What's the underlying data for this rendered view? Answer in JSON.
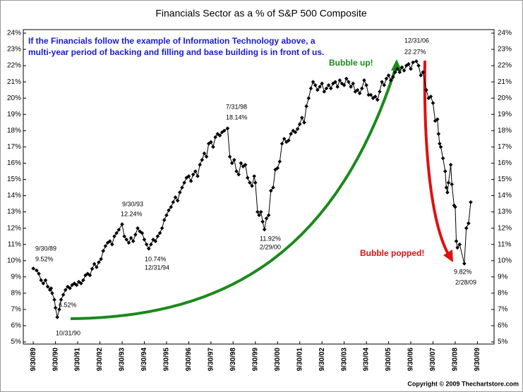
{
  "chart_data": {
    "type": "line",
    "title": "Financials Sector as a % of S&P 500 Composite",
    "note": "If the Financials follow the example of Information Technology above, a multi-year period of backing and filling and base building is in front of us.",
    "bubble_up": "Bubble up!",
    "bubble_popped": "Bubble popped!",
    "copyright": "Copyright © 2009 Thechartstore.com",
    "annotations": [
      "9/30/89",
      "9.52%",
      "6.52%",
      "10/31/90",
      "9/30/93",
      "12.24%",
      "10.74%",
      "12/31/94",
      "7/31/98",
      "18.14%",
      "11.92%",
      "2/29/00",
      "12/31/06",
      "22.27%",
      "9.82%",
      "2/28/09"
    ],
    "color": "#000000",
    "grid": false,
    "xlim": [
      1989.3,
      2010.5
    ],
    "ylim": [
      5,
      24
    ],
    "xticks": [
      {
        "value": 1989.75,
        "label": "9/30/89"
      },
      {
        "value": 1990.75,
        "label": "9/30/90"
      },
      {
        "value": 1991.75,
        "label": "9/30/91"
      },
      {
        "value": 1992.75,
        "label": "9/30/92"
      },
      {
        "value": 1993.75,
        "label": "9/30/93"
      },
      {
        "value": 1994.75,
        "label": "9/30/94"
      },
      {
        "value": 1995.75,
        "label": "9/30/95"
      },
      {
        "value": 1996.75,
        "label": "9/30/96"
      },
      {
        "value": 1997.75,
        "label": "9/30/97"
      },
      {
        "value": 1998.75,
        "label": "9/30/98"
      },
      {
        "value": 1999.75,
        "label": "9/30/99"
      },
      {
        "value": 2000.75,
        "label": "9/30/00"
      },
      {
        "value": 2001.75,
        "label": "9/30/01"
      },
      {
        "value": 2002.75,
        "label": "9/30/02"
      },
      {
        "value": 2003.75,
        "label": "9/30/03"
      },
      {
        "value": 2004.75,
        "label": "9/30/04"
      },
      {
        "value": 2005.75,
        "label": "9/30/05"
      },
      {
        "value": 2006.75,
        "label": "9/30/06"
      },
      {
        "value": 2007.75,
        "label": "9/30/07"
      },
      {
        "value": 2008.75,
        "label": "9/30/08"
      },
      {
        "value": 2009.75,
        "label": "9/30/09"
      }
    ],
    "yticks": [
      {
        "value": 5,
        "label": "5%"
      },
      {
        "value": 6,
        "label": "6%"
      },
      {
        "value": 7,
        "label": "7%"
      },
      {
        "value": 8,
        "label": "8%"
      },
      {
        "value": 9,
        "label": "9%"
      },
      {
        "value": 10,
        "label": "10%"
      },
      {
        "value": 11,
        "label": "11%"
      },
      {
        "value": 12,
        "label": "12%"
      },
      {
        "value": 13,
        "label": "13%"
      },
      {
        "value": 14,
        "label": "14%"
      },
      {
        "value": 15,
        "label": "15%"
      },
      {
        "value": 16,
        "label": "16%"
      },
      {
        "value": 17,
        "label": "17%"
      },
      {
        "value": 18,
        "label": "18%"
      },
      {
        "value": 19,
        "label": "19%"
      },
      {
        "value": 20,
        "label": "20%"
      },
      {
        "value": 21,
        "label": "21%"
      },
      {
        "value": 22,
        "label": "22%"
      },
      {
        "value": 23,
        "label": "23%"
      },
      {
        "value": 24,
        "label": "24%"
      }
    ],
    "x": [
      1989.75,
      1989.9,
      1990.0,
      1990.1,
      1990.2,
      1990.3,
      1990.4,
      1990.5,
      1990.55,
      1990.6,
      1990.7,
      1990.75,
      1990.83,
      1990.92,
      1991.0,
      1991.1,
      1991.2,
      1991.3,
      1991.4,
      1991.5,
      1991.6,
      1991.7,
      1991.8,
      1991.9,
      1992.0,
      1992.1,
      1992.2,
      1992.3,
      1992.4,
      1992.5,
      1992.6,
      1992.7,
      1992.8,
      1992.9,
      1993.0,
      1993.1,
      1993.2,
      1993.3,
      1993.4,
      1993.5,
      1993.6,
      1993.75,
      1993.85,
      1993.95,
      1994.05,
      1994.15,
      1994.25,
      1994.35,
      1994.45,
      1994.55,
      1994.65,
      1994.75,
      1994.85,
      1994.95,
      1995.05,
      1995.15,
      1995.25,
      1995.35,
      1995.45,
      1995.55,
      1995.65,
      1995.75,
      1995.85,
      1995.95,
      1996.05,
      1996.15,
      1996.25,
      1996.35,
      1996.45,
      1996.55,
      1996.65,
      1996.75,
      1996.85,
      1996.95,
      1997.05,
      1997.15,
      1997.25,
      1997.35,
      1997.45,
      1997.55,
      1997.65,
      1997.75,
      1997.85,
      1997.95,
      1998.05,
      1998.15,
      1998.25,
      1998.35,
      1998.5,
      1998.6,
      1998.7,
      1998.8,
      1998.9,
      1999.0,
      1999.1,
      1999.2,
      1999.3,
      1999.4,
      1999.5,
      1999.6,
      1999.7,
      1999.75,
      1999.85,
      1999.92,
      2000.0,
      2000.08,
      2000.16,
      2000.25,
      2000.35,
      2000.45,
      2000.55,
      2000.65,
      2000.75,
      2000.85,
      2000.95,
      2001.05,
      2001.15,
      2001.25,
      2001.35,
      2001.45,
      2001.55,
      2001.65,
      2001.75,
      2001.85,
      2001.95,
      2002.05,
      2002.15,
      2002.25,
      2002.35,
      2002.45,
      2002.55,
      2002.65,
      2002.75,
      2002.85,
      2002.95,
      2003.05,
      2003.15,
      2003.25,
      2003.35,
      2003.45,
      2003.55,
      2003.65,
      2003.75,
      2003.85,
      2003.95,
      2004.05,
      2004.15,
      2004.25,
      2004.35,
      2004.45,
      2004.55,
      2004.65,
      2004.75,
      2004.85,
      2004.95,
      2005.05,
      2005.15,
      2005.25,
      2005.35,
      2005.45,
      2005.55,
      2005.65,
      2005.75,
      2005.85,
      2005.95,
      2006.05,
      2006.15,
      2006.25,
      2006.35,
      2006.45,
      2006.55,
      2006.65,
      2006.75,
      2006.85,
      2007.0,
      2007.1,
      2007.2,
      2007.3,
      2007.45,
      2007.55,
      2007.65,
      2007.75,
      2007.85,
      2007.95,
      2008.0,
      2008.05,
      2008.1,
      2008.2,
      2008.3,
      2008.35,
      2008.4,
      2008.45,
      2008.55,
      2008.6,
      2008.7,
      2008.75,
      2008.8,
      2008.85,
      2008.95,
      2009.16,
      2009.25,
      2009.35,
      2009.45
    ],
    "values": [
      9.52,
      9.4,
      9.2,
      8.8,
      8.6,
      8.8,
      8.4,
      8.2,
      8.3,
      8.0,
      7.6,
      7.1,
      6.52,
      7.0,
      7.6,
      7.9,
      8.2,
      8.4,
      8.3,
      8.5,
      8.6,
      8.5,
      8.7,
      8.6,
      8.8,
      9.1,
      9.2,
      9.1,
      9.5,
      9.8,
      9.6,
      9.9,
      10.1,
      10.6,
      10.9,
      11.1,
      11.2,
      11.0,
      11.5,
      11.7,
      11.9,
      12.24,
      11.5,
      11.3,
      11.1,
      11.4,
      11.2,
      11.6,
      12.0,
      11.8,
      11.7,
      11.3,
      11.0,
      10.74,
      11.0,
      11.3,
      11.2,
      11.5,
      11.7,
      12.0,
      12.5,
      12.8,
      13.1,
      13.3,
      13.6,
      13.9,
      13.7,
      14.2,
      14.5,
      14.8,
      15.1,
      15.2,
      14.9,
      15.3,
      15.5,
      15.2,
      15.9,
      16.2,
      16.6,
      16.4,
      17.2,
      17.3,
      17.0,
      17.6,
      17.8,
      17.7,
      17.9,
      18.0,
      18.14,
      16.4,
      16.0,
      16.2,
      15.5,
      15.3,
      16.0,
      15.8,
      15.9,
      15.1,
      14.8,
      14.6,
      15.2,
      14.8,
      13.0,
      12.8,
      13.0,
      12.4,
      11.92,
      12.6,
      12.8,
      14.3,
      14.5,
      15.6,
      15.7,
      16.1,
      17.2,
      17.5,
      17.3,
      17.4,
      17.8,
      18.0,
      17.9,
      18.1,
      18.4,
      18.8,
      18.5,
      19.5,
      20.0,
      20.6,
      21.0,
      20.8,
      20.5,
      20.7,
      20.9,
      20.4,
      20.6,
      20.8,
      20.6,
      20.9,
      21.0,
      20.7,
      21.1,
      20.9,
      20.8,
      21.2,
      21.0,
      20.7,
      20.9,
      20.4,
      20.5,
      20.3,
      20.6,
      21.1,
      20.8,
      20.2,
      20.2,
      20.0,
      20.1,
      19.9,
      20.4,
      21.0,
      20.8,
      21.2,
      21.4,
      21.1,
      21.3,
      21.6,
      21.8,
      21.6,
      21.9,
      21.7,
      22.0,
      22.1,
      21.8,
      22.2,
      22.27,
      22.0,
      21.4,
      21.6,
      20.5,
      20.0,
      20.1,
      19.7,
      18.6,
      18.7,
      17.8,
      17.2,
      17.0,
      16.3,
      15.5,
      14.5,
      14.2,
      14.8,
      15.9,
      14.7,
      13.4,
      13.3,
      11.2,
      10.8,
      11.0,
      9.82,
      12.0,
      12.3,
      13.6
    ]
  }
}
